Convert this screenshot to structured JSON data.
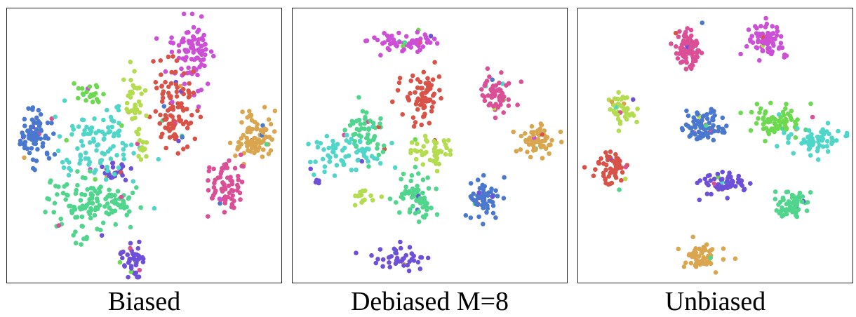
{
  "chart_data": [
    {
      "type": "scatter",
      "title": "Biased",
      "xlim": [
        0,
        100
      ],
      "ylim": [
        0,
        100
      ],
      "grid": false,
      "clusters": [
        {
          "color": "#4a78cf",
          "cx": 10,
          "cy": 54,
          "sx": 3.0,
          "sy": 4.5,
          "n": 80
        },
        {
          "color": "#cc4fd6",
          "cx": 68,
          "cy": 84,
          "sx": 4.0,
          "sy": 6.5,
          "n": 90
        },
        {
          "color": "#d85247",
          "cx": 61,
          "cy": 63,
          "sx": 4.0,
          "sy": 6.5,
          "n": 110
        },
        {
          "color": "#d9a64f",
          "cx": 90,
          "cy": 53,
          "sx": 3.5,
          "sy": 4.5,
          "n": 80
        },
        {
          "color": "#da4f95",
          "cx": 80,
          "cy": 35,
          "sx": 3.2,
          "sy": 5.5,
          "n": 70
        },
        {
          "color": "#6e50d8",
          "cx": 46,
          "cy": 8,
          "sx": 2.2,
          "sy": 3.0,
          "n": 45
        },
        {
          "color": "#6e50d8",
          "cx": 39,
          "cy": 41,
          "sx": 3.0,
          "sy": 2.0,
          "n": 25
        },
        {
          "color": "#4fd6c8",
          "cx": 33,
          "cy": 52,
          "sx": 7.0,
          "sy": 8.0,
          "n": 100
        },
        {
          "color": "#4fd68c",
          "cx": 27,
          "cy": 28,
          "sx": 6.5,
          "sy": 5.5,
          "n": 90
        },
        {
          "color": "#4fd68c",
          "cx": 40,
          "cy": 28,
          "sx": 3.0,
          "sy": 4.5,
          "n": 40
        },
        {
          "color": "#6cd94f",
          "cx": 30,
          "cy": 69,
          "sx": 2.5,
          "sy": 2.5,
          "n": 25
        },
        {
          "color": "#b4dc4f",
          "cx": 46,
          "cy": 67,
          "sx": 2.0,
          "sy": 5.0,
          "n": 35
        },
        {
          "color": "#b4dc4f",
          "cx": 49,
          "cy": 50,
          "sx": 1.2,
          "sy": 3.0,
          "n": 15
        }
      ]
    },
    {
      "type": "scatter",
      "title": "Debiased M=8",
      "xlim": [
        0,
        100
      ],
      "ylim": [
        0,
        100
      ],
      "grid": false,
      "clusters": [
        {
          "color": "#cc4fd6",
          "cx": 40,
          "cy": 88,
          "sx": 6.0,
          "sy": 2.0,
          "n": 60
        },
        {
          "color": "#d85247",
          "cx": 48,
          "cy": 68,
          "sx": 3.5,
          "sy": 5.0,
          "n": 70
        },
        {
          "color": "#da4f95",
          "cx": 75,
          "cy": 69,
          "sx": 3.5,
          "sy": 4.0,
          "n": 60
        },
        {
          "color": "#d9a64f",
          "cx": 89,
          "cy": 52,
          "sx": 3.5,
          "sy": 3.0,
          "n": 60
        },
        {
          "color": "#4fd6c8",
          "cx": 20,
          "cy": 47,
          "sx": 6.5,
          "sy": 3.5,
          "n": 70
        },
        {
          "color": "#4fd68c",
          "cx": 26,
          "cy": 55,
          "sx": 4.0,
          "sy": 4.0,
          "n": 50
        },
        {
          "color": "#4fd68c",
          "cx": 45,
          "cy": 31,
          "sx": 3.0,
          "sy": 4.5,
          "n": 60
        },
        {
          "color": "#b4dc4f",
          "cx": 50,
          "cy": 48,
          "sx": 4.0,
          "sy": 2.5,
          "n": 45
        },
        {
          "color": "#b4dc4f",
          "cx": 26,
          "cy": 31,
          "sx": 2.5,
          "sy": 1.8,
          "n": 15
        },
        {
          "color": "#4a78cf",
          "cx": 69,
          "cy": 31,
          "sx": 3.0,
          "sy": 3.5,
          "n": 60
        },
        {
          "color": "#6e50d8",
          "cx": 39,
          "cy": 9,
          "sx": 4.5,
          "sy": 2.0,
          "n": 40
        },
        {
          "color": "#6e50d8",
          "cx": 9,
          "cy": 37,
          "sx": 0.7,
          "sy": 1.0,
          "n": 6
        }
      ]
    },
    {
      "type": "scatter",
      "title": "Unbiased",
      "xlim": [
        0,
        100
      ],
      "ylim": [
        0,
        100
      ],
      "grid": false,
      "clusters": [
        {
          "color": "#da4f95",
          "cx": 40,
          "cy": 85,
          "sx": 2.8,
          "sy": 3.8,
          "n": 80
        },
        {
          "color": "#cc4fd6",
          "cx": 69,
          "cy": 88,
          "sx": 3.2,
          "sy": 3.2,
          "n": 70
        },
        {
          "color": "#b4dc4f",
          "cx": 16,
          "cy": 63,
          "sx": 3.2,
          "sy": 2.8,
          "n": 45
        },
        {
          "color": "#4a78cf",
          "cx": 46,
          "cy": 57,
          "sx": 4.0,
          "sy": 2.8,
          "n": 80
        },
        {
          "color": "#6cd94f",
          "cx": 72,
          "cy": 59,
          "sx": 4.5,
          "sy": 3.0,
          "n": 70
        },
        {
          "color": "#4fd6c8",
          "cx": 86,
          "cy": 52,
          "sx": 5.0,
          "sy": 2.5,
          "n": 70
        },
        {
          "color": "#d85247",
          "cx": 12,
          "cy": 42,
          "sx": 2.8,
          "sy": 3.2,
          "n": 60
        },
        {
          "color": "#6e50d8",
          "cx": 53,
          "cy": 36,
          "sx": 4.0,
          "sy": 2.2,
          "n": 60
        },
        {
          "color": "#4fd68c",
          "cx": 78,
          "cy": 29,
          "sx": 3.0,
          "sy": 2.8,
          "n": 65
        },
        {
          "color": "#d9a64f",
          "cx": 45,
          "cy": 10,
          "sx": 3.0,
          "sy": 3.0,
          "n": 60
        }
      ]
    }
  ]
}
